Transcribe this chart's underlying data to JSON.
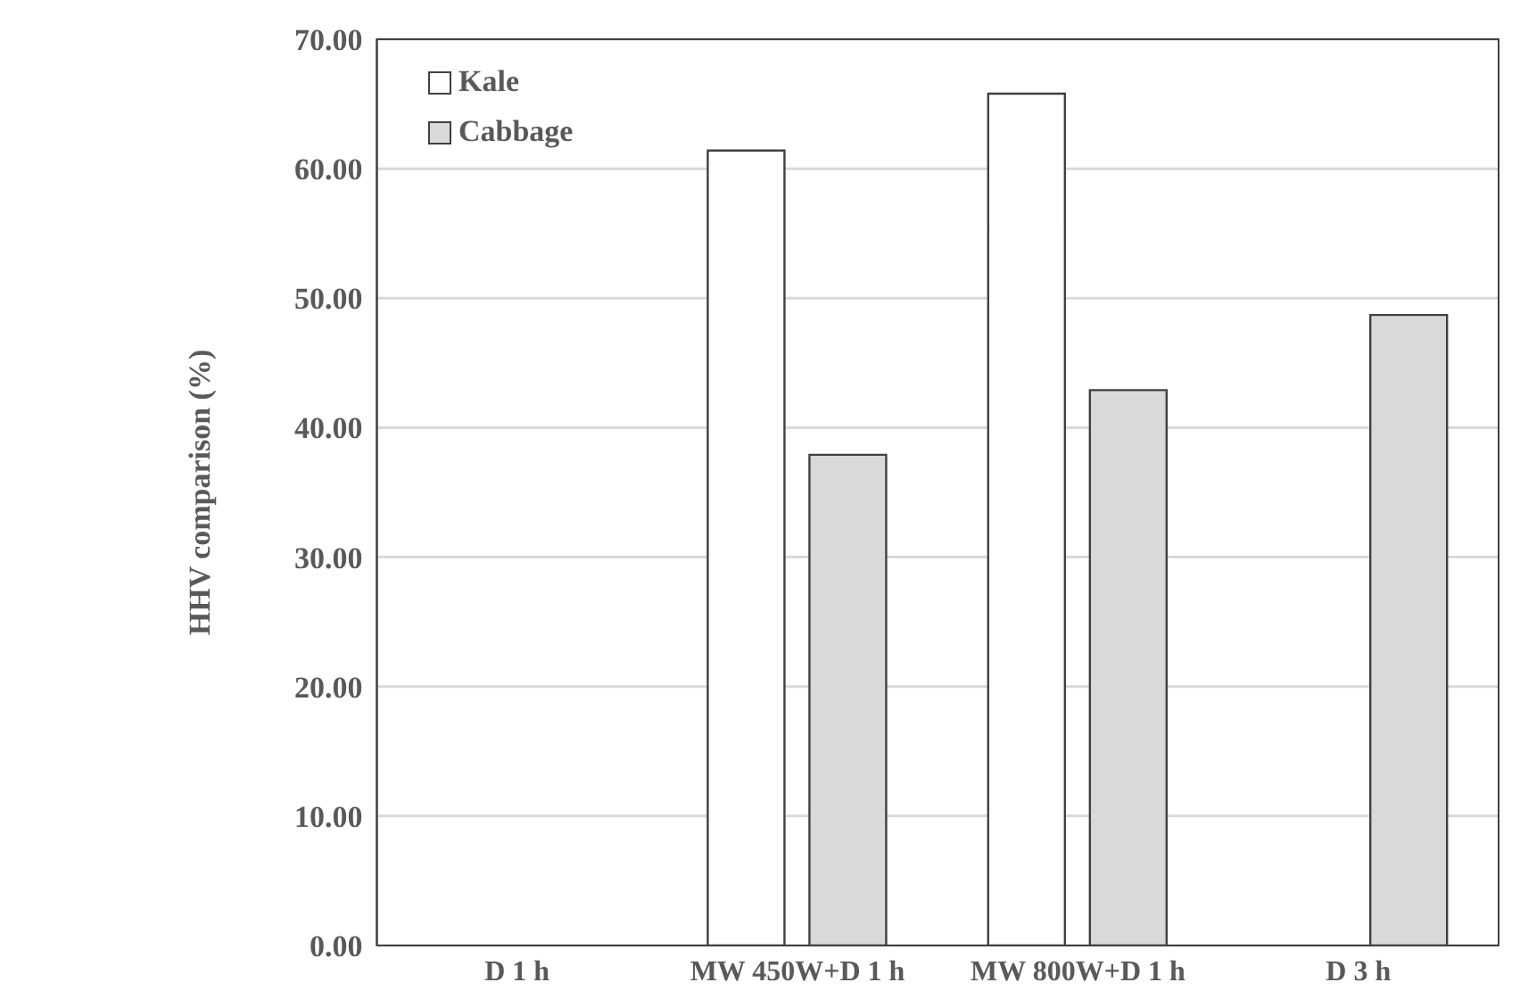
{
  "chart_data": {
    "type": "bar",
    "ylabel": "HHV comparison (%)",
    "categories": [
      "D 1 h",
      "MW 450W+D 1 h",
      "MW 800W+D 1 h",
      "D 3 h"
    ],
    "series": [
      {
        "name": "Kale",
        "color": "#ffffff",
        "values": [
          null,
          61.4,
          65.8,
          null
        ]
      },
      {
        "name": "Cabbage",
        "color": "#d9d9d9",
        "values": [
          null,
          37.9,
          42.9,
          48.7
        ]
      }
    ],
    "ylim": [
      0,
      70
    ],
    "yticks": [
      {
        "value": 0,
        "label": "0.00"
      },
      {
        "value": 10,
        "label": "10.00"
      },
      {
        "value": 20,
        "label": "20.00"
      },
      {
        "value": 30,
        "label": "30.00"
      },
      {
        "value": 40,
        "label": "40.00"
      },
      {
        "value": 50,
        "label": "50.00"
      },
      {
        "value": 60,
        "label": "60.00"
      },
      {
        "value": 70,
        "label": "70.00"
      }
    ],
    "grid": "y",
    "legend": "top left"
  }
}
